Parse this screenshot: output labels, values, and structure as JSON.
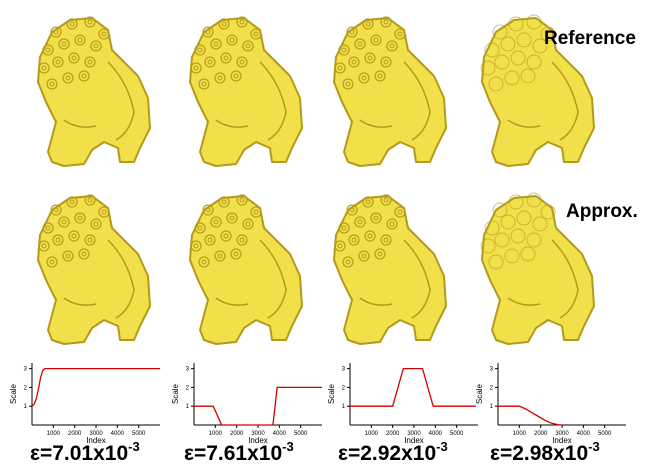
{
  "row_labels": {
    "reference": "Reference",
    "approx": "Approx."
  },
  "mesh_color": "#f2e04a",
  "mesh_shadow": "#b39a1a",
  "columns": [
    {
      "error": {
        "prefix": "ε=",
        "mantissa": "7.01x10",
        "exponent": "-3"
      }
    },
    {
      "error": {
        "prefix": "ε=",
        "mantissa": "7.61x10",
        "exponent": "-3"
      }
    },
    {
      "error": {
        "prefix": "ε=",
        "mantissa": "2.92x10",
        "exponent": "-3"
      }
    },
    {
      "error": {
        "prefix": "ε=",
        "mantissa": "2.98x10",
        "exponent": "-3"
      }
    }
  ],
  "chart_data": [
    {
      "type": "line",
      "xlabel": "Index",
      "ylabel": "Scale",
      "xlim": [
        0,
        6000
      ],
      "ylim": [
        0,
        3.3
      ],
      "xticks": [
        "1000",
        "2000",
        "3000",
        "4000",
        "5000"
      ],
      "yticks": [
        "1",
        "2",
        "3"
      ],
      "line_color": "#d40000",
      "x": [
        0,
        100,
        200,
        300,
        400,
        500,
        600,
        6000
      ],
      "y": [
        1.0,
        1.1,
        1.4,
        1.9,
        2.5,
        2.9,
        3.0,
        3.0
      ]
    },
    {
      "type": "line",
      "xlabel": "Index",
      "ylabel": "Scale",
      "xlim": [
        0,
        6000
      ],
      "ylim": [
        0,
        3.3
      ],
      "xticks": [
        "1000",
        "2000",
        "3000",
        "4000",
        "5000"
      ],
      "yticks": [
        "1",
        "2",
        "3"
      ],
      "line_color": "#d40000",
      "x": [
        0,
        900,
        1300,
        3700,
        3900,
        6000
      ],
      "y": [
        1.0,
        1.0,
        0.0,
        0.0,
        2.0,
        2.0
      ]
    },
    {
      "type": "line",
      "xlabel": "Index",
      "ylabel": "Scale",
      "xlim": [
        0,
        6000
      ],
      "ylim": [
        0,
        3.3
      ],
      "xticks": [
        "1000",
        "2000",
        "3000",
        "4000",
        "5000"
      ],
      "yticks": [
        "1",
        "2",
        "3"
      ],
      "line_color": "#d40000",
      "x": [
        0,
        2000,
        2500,
        3400,
        3900,
        5900
      ],
      "y": [
        1.0,
        1.0,
        3.0,
        3.0,
        1.0,
        1.0
      ]
    },
    {
      "type": "line",
      "xlabel": "Index",
      "ylabel": "Scale",
      "xlim": [
        0,
        6000
      ],
      "ylim": [
        0,
        3.3
      ],
      "xticks": [
        "1000",
        "2000",
        "3000",
        "4000",
        "5000"
      ],
      "yticks": [
        "1",
        "2",
        "3"
      ],
      "line_color": "#d40000",
      "x": [
        0,
        1000,
        1300,
        1600,
        1900,
        2200,
        2500,
        2800,
        3000
      ],
      "y": [
        1.0,
        1.0,
        0.85,
        0.65,
        0.45,
        0.25,
        0.1,
        0.02,
        0.0
      ]
    }
  ]
}
